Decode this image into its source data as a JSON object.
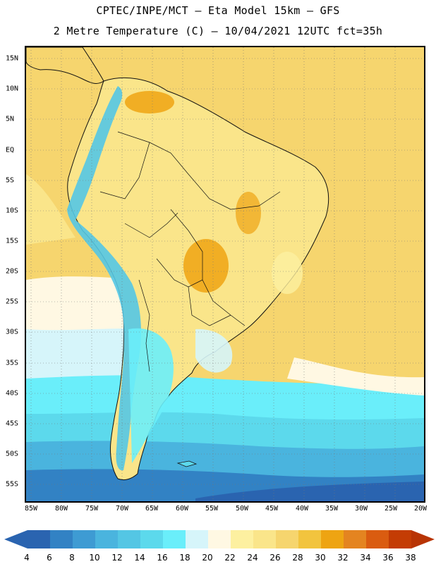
{
  "header": {
    "title_line1": "CPTEC/INPE/MCT –  Eta Model 15km – GFS",
    "title_line2": "2 Metre Temperature (C) – 10/04/2021 12UTC fct=35h"
  },
  "map": {
    "lat_labels": [
      "15N",
      "10N",
      "5N",
      "EQ",
      "5S",
      "10S",
      "15S",
      "20S",
      "25S",
      "30S",
      "35S",
      "40S",
      "45S",
      "50S",
      "55S"
    ],
    "lon_labels": [
      "85W",
      "80W",
      "75W",
      "70W",
      "65W",
      "60W",
      "55W",
      "50W",
      "45W",
      "40W",
      "35W",
      "30W",
      "25W",
      "20W"
    ]
  },
  "legend": {
    "ticks": [
      "4",
      "6",
      "8",
      "10",
      "12",
      "14",
      "16",
      "18",
      "20",
      "22",
      "24",
      "26",
      "28",
      "30",
      "32",
      "34",
      "36",
      "38"
    ],
    "colors": [
      "#2a64b0",
      "#3282c4",
      "#3e9bd3",
      "#4ab4de",
      "#54c6e4",
      "#5cd9ec",
      "#6aeefa",
      "#d6f5fa",
      "#fff8e3",
      "#fdf0a0",
      "#fae58a",
      "#f6d56e",
      "#f2c43e",
      "#eea412",
      "#e48420",
      "#da5c10",
      "#c43c04"
    ],
    "low_arrow_color": "#2a64b0",
    "high_arrow_color": "#b83404"
  }
}
